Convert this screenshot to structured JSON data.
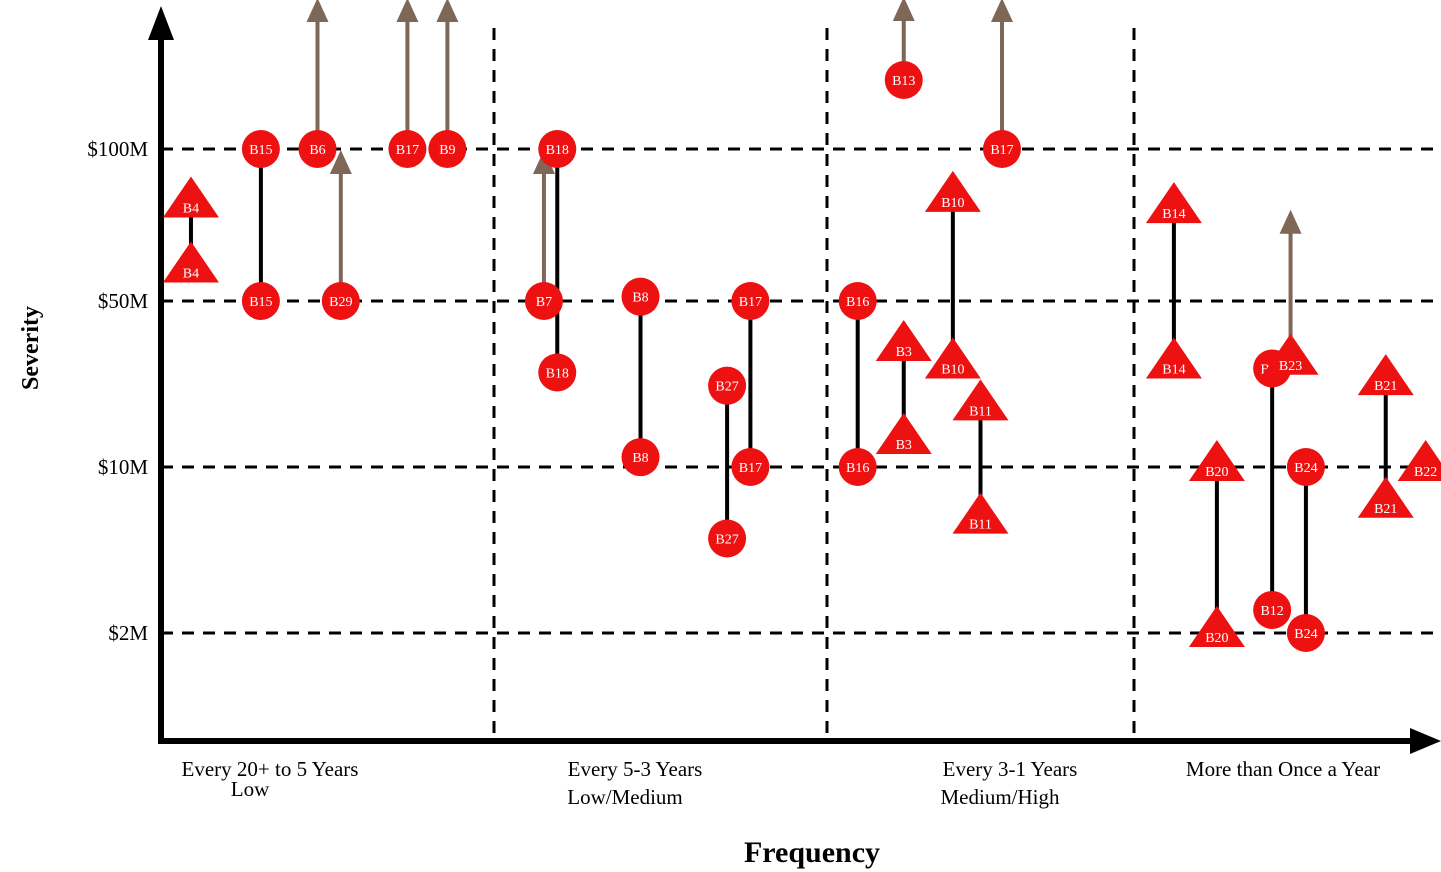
{
  "chart_data": {
    "type": "scatter",
    "xlabel": "Frequency",
    "ylabel": "Severity",
    "grid": true,
    "y_ticks": [
      "$2M",
      "$10M",
      "$50M",
      "$100M"
    ],
    "x_categories": [
      {
        "line1": "Every 20+ to 5 Years",
        "line2": "Low"
      },
      {
        "line1": "Every 5-3 Years",
        "line2": "Low/Medium"
      },
      {
        "line1": "Every 3-1 Years",
        "line2": "Medium/High"
      },
      {
        "line1": "More than Once a Year",
        "line2": ""
      }
    ],
    "colors": {
      "marker": "#ee1111",
      "arrow": "#7f6757",
      "line": "#000000",
      "text": "#ffffff"
    },
    "ranges": [
      {
        "frequency": "Every 20+ to 5 Years",
        "x": 0.09,
        "from": {
          "label": "B4",
          "shape": "triangle",
          "severity": 78
        },
        "to": {
          "label": "B4",
          "shape": "triangle",
          "severity": 58
        }
      },
      {
        "frequency": "Every 20+ to 5 Years",
        "x": 0.3,
        "from": {
          "label": "B15",
          "shape": "circle",
          "severity": 100
        },
        "to": {
          "label": "B15",
          "shape": "circle",
          "severity": 50
        }
      },
      {
        "frequency": "Every 5-3 Years",
        "x": 0.19,
        "from": {
          "label": "B18",
          "shape": "circle",
          "severity": 100
        },
        "to": {
          "label": "B18",
          "shape": "circle",
          "severity": 25
        }
      },
      {
        "frequency": "Every 5-3 Years",
        "x": 0.44,
        "from": {
          "label": "B8",
          "shape": "circle",
          "severity": 51
        },
        "to": {
          "label": "B8",
          "shape": "circle",
          "severity": 11
        }
      },
      {
        "frequency": "Every 5-3 Years",
        "x": 0.7,
        "from": {
          "label": "B27",
          "shape": "circle",
          "severity": 22
        },
        "to": {
          "label": "B27",
          "shape": "circle",
          "severity": 5
        }
      },
      {
        "frequency": "Every 5-3 Years",
        "x": 0.77,
        "from": {
          "label": "B17",
          "shape": "circle",
          "severity": 50
        },
        "to": {
          "label": "B17",
          "shape": "circle",
          "severity": 10
        }
      },
      {
        "frequency": "Every 3-1 Years",
        "x": 0.1,
        "from": {
          "label": "B16",
          "shape": "circle",
          "severity": 50
        },
        "to": {
          "label": "B16",
          "shape": "circle",
          "severity": 10
        }
      },
      {
        "frequency": "Every 3-1 Years",
        "x": 0.25,
        "from": {
          "label": "B3",
          "shape": "triangle",
          "severity": 32
        },
        "to": {
          "label": "B3",
          "shape": "triangle",
          "severity": 13
        }
      },
      {
        "frequency": "Every 3-1 Years",
        "x": 0.41,
        "from": {
          "label": "B10",
          "shape": "triangle",
          "severity": 80
        },
        "to": {
          "label": "B10",
          "shape": "triangle",
          "severity": 27
        }
      },
      {
        "frequency": "Every 3-1 Years",
        "x": 0.5,
        "from": {
          "label": "B11",
          "shape": "triangle",
          "severity": 18
        },
        "to": {
          "label": "B11",
          "shape": "triangle",
          "severity": 6
        }
      },
      {
        "frequency": "More than Once a Year",
        "x": 0.13,
        "from": {
          "label": "B14",
          "shape": "triangle",
          "severity": 76
        },
        "to": {
          "label": "B14",
          "shape": "triangle",
          "severity": 27
        }
      },
      {
        "frequency": "More than Once a Year",
        "x": 0.27,
        "from": {
          "label": "B20",
          "shape": "triangle",
          "severity": 10
        },
        "to": {
          "label": "B20",
          "shape": "triangle",
          "severity": 2
        }
      },
      {
        "frequency": "More than Once a Year",
        "x": 0.45,
        "from": {
          "label": "B12",
          "shape": "circle",
          "severity": 26
        },
        "to": {
          "label": "B12",
          "shape": "circle",
          "severity": 2.5
        }
      },
      {
        "frequency": "More than Once a Year",
        "x": 0.56,
        "from": {
          "label": "B24",
          "shape": "circle",
          "severity": 10
        },
        "to": {
          "label": "B24",
          "shape": "circle",
          "severity": 2
        }
      },
      {
        "frequency": "More than Once a Year",
        "x": 0.82,
        "from": {
          "label": "B21",
          "shape": "triangle",
          "severity": 23
        },
        "to": {
          "label": "B21",
          "shape": "triangle",
          "severity": 7
        }
      }
    ],
    "open_ended": [
      {
        "frequency": "Every 20+ to 5 Years",
        "x": 0.47,
        "label": "B6",
        "shape": "circle",
        "severity": 100
      },
      {
        "frequency": "Every 20+ to 5 Years",
        "x": 0.74,
        "label": "B17",
        "shape": "circle",
        "severity": 100
      },
      {
        "frequency": "Every 20+ to 5 Years",
        "x": 0.86,
        "label": "B9",
        "shape": "circle",
        "severity": 100
      },
      {
        "frequency": "Every 20+ to 5 Years",
        "x": 0.54,
        "label": "B29",
        "shape": "circle",
        "severity": 50
      },
      {
        "frequency": "Every 5-3 Years",
        "x": 0.15,
        "label": "B7",
        "shape": "circle",
        "severity": 50
      },
      {
        "frequency": "Every 3-1 Years",
        "x": 0.25,
        "label": "B13",
        "shape": "circle",
        "severity": 150
      },
      {
        "frequency": "Every 3-1 Years",
        "x": 0.57,
        "label": "B17",
        "shape": "circle",
        "severity": 100
      },
      {
        "frequency": "More than Once a Year",
        "x": 0.51,
        "label": "B23",
        "shape": "triangle",
        "severity": 28
      }
    ],
    "points": [
      {
        "frequency": "More than Once a Year",
        "x": 0.95,
        "label": "B22",
        "shape": "triangle",
        "severity": 10
      }
    ]
  }
}
